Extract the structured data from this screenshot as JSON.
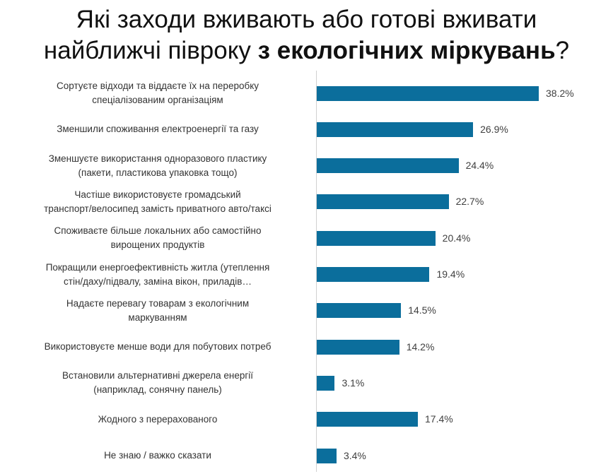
{
  "title": {
    "line1": "Які заходи вживають або готові вживати",
    "line2_prefix": "найближчі півроку ",
    "line2_bold": "з екологічних міркувань",
    "line2_suffix": "?"
  },
  "chart_data": {
    "type": "bar",
    "orientation": "horizontal",
    "title": "Які заходи вживають або готові вживати найближчі півроку з екологічних міркувань?",
    "categories": [
      "Сортуєте відходи та віддаєте їх на переробку\nспеціалізованим організаціям",
      "Зменшили  споживання електроенергії та газу",
      "Зменшуєте використання одноразового пластику\n(пакети, пластикова упаковка тощо)",
      "Частіше використовуєте громадський\nтранспорт/велосипед замість приватного авто/таксі",
      "Споживаєте більше локальних або самостійно\nвирощених продуктів",
      "Покращили енергоефективність житла (утеплення\nстін/даху/підвалу, заміна вікон, приладів…",
      "Надаєте перевагу товарам з екологічним\nмаркуванням",
      "Використовуєте менше води для побутових потреб",
      "Встановили альтернативні джерела енергії\n(наприклад, сонячну панель)",
      "Жодного з перерахованого",
      "Не знаю / важко сказати"
    ],
    "values": [
      38.2,
      26.9,
      24.4,
      22.7,
      20.4,
      19.4,
      14.5,
      14.2,
      3.1,
      17.4,
      3.4
    ],
    "value_labels": [
      "38.2%",
      "26.9%",
      "24.4%",
      "22.7%",
      "20.4%",
      "19.4%",
      "14.5%",
      "14.2%",
      "3.1%",
      "17.4%",
      "3.4%"
    ],
    "xlim": [
      0,
      38.2
    ],
    "color": "#0b6e9c",
    "grid": false,
    "legend": "none"
  }
}
